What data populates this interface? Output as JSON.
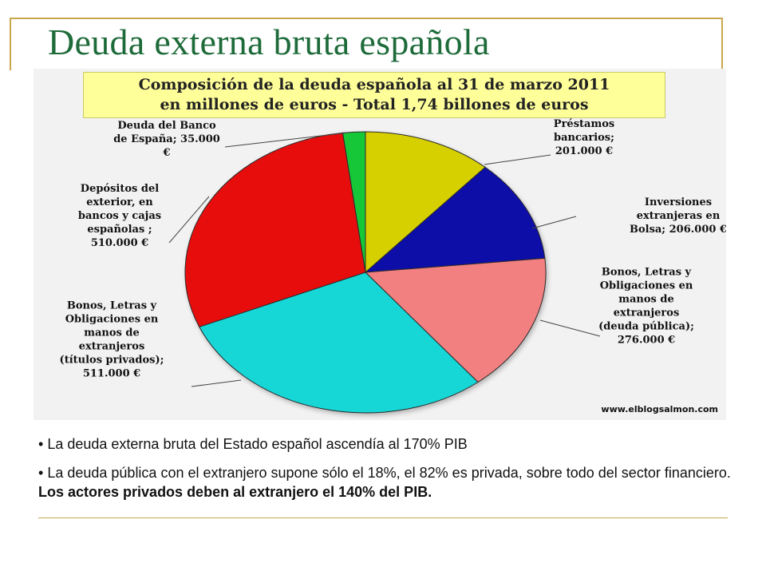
{
  "slide": {
    "title": "Deuda externa bruta española",
    "bullets": [
      {
        "marker": "•",
        "text": "La deuda externa bruta del Estado español ascendía al 170% PIB"
      },
      {
        "marker": "•",
        "text": "La deuda pública con el extranjero supone sólo el 18%, el 82% es privada, sobre todo del sector financiero. ",
        "bold": "Los actores privados deben al extranjero el 140% del PIB."
      }
    ]
  },
  "chart_data": {
    "type": "pie",
    "title": "Composición de la deuda española al 31 de marzo 2011",
    "subtitle": "en millones de euros - Total 1,74 billones de euros",
    "watermark": "www.elblogsalmon.com",
    "start": "12 o'clock",
    "direction": "clockwise",
    "slices": [
      {
        "label_lines": [
          "Préstamos",
          "bancarios;",
          "201.000 €"
        ],
        "value": 201000,
        "color": "#d6d000"
      },
      {
        "label_lines": [
          "Inversiones",
          "extranjeras en",
          "Bolsa; 206.000 €"
        ],
        "value": 206000,
        "color": "#0b0fa8"
      },
      {
        "label_lines": [
          "Bonos, Letras y",
          "Obligaciones en",
          "manos de",
          "extranjeros",
          "(deuda pública);",
          "276.000 €"
        ],
        "value": 276000,
        "color": "#f28080"
      },
      {
        "label_lines": [
          "Bonos, Letras y",
          "Obligaciones en",
          "manos de",
          "extranjeros",
          "(títulos privados);",
          "511.000 €"
        ],
        "value": 511000,
        "color": "#19d6d6"
      },
      {
        "label_lines": [
          "Depósitos del",
          "exterior, en",
          "bancos y cajas",
          "españolas ;",
          "510.000 €"
        ],
        "value": 510000,
        "color": "#e81010"
      },
      {
        "label_lines": [
          "Deuda del Banco",
          "de España; 35.000",
          "€"
        ],
        "value": 35000,
        "color": "#12c838"
      }
    ]
  }
}
